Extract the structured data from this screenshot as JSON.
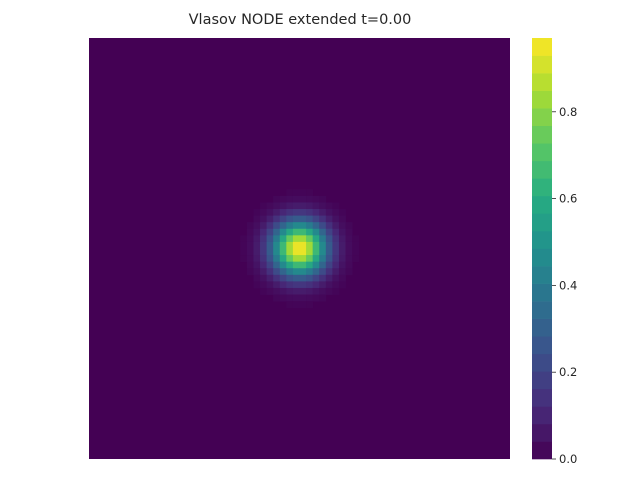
{
  "chart_data": {
    "type": "heatmap",
    "title": "Vlasov NODE extended t=0.00",
    "xlabel": "",
    "ylabel": "",
    "colormap": "viridis",
    "colorbar": {
      "range": [
        0.0,
        0.97
      ],
      "ticks": [
        0.0,
        0.2,
        0.4,
        0.6,
        0.8
      ],
      "tick_labels": [
        "0.0",
        "0.2",
        "0.4",
        "0.6",
        "0.8"
      ]
    },
    "grid_size": [
      64,
      64
    ],
    "peak": {
      "value": 0.97,
      "center_fraction": [
        0.5,
        0.5
      ],
      "sigma_fraction": 0.045
    },
    "axes_visible": false
  }
}
